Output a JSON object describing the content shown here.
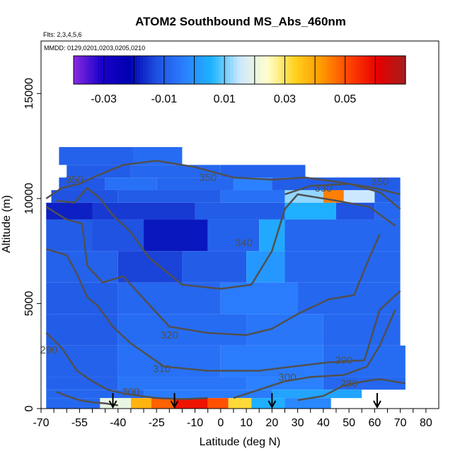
{
  "chart_data": {
    "type": "heatmap",
    "title": "ATOM2 Southbound MS_Abs_460nm",
    "flights_note": "Flts: 2,3,4,5,6",
    "dates_note": "MMDD: 0129,0201,0203,0205,0210",
    "xlabel": "Latitude (deg N)",
    "ylabel": "Altitude (m)",
    "xlim": [
      -70,
      85
    ],
    "ylim": [
      0,
      17500
    ],
    "x_ticks": [
      -70,
      -55,
      -40,
      -25,
      -10,
      0,
      10,
      20,
      30,
      40,
      50,
      60,
      70,
      80
    ],
    "x_tick_labels": [
      "-70",
      "-55",
      "-40",
      "-25",
      "-10",
      "0",
      "10",
      "20",
      "30",
      "40",
      "50",
      "60",
      "70",
      "80"
    ],
    "y_ticks": [
      0,
      5000,
      10000,
      15000
    ],
    "y_tick_labels": [
      "0",
      "5000",
      "10000",
      "15000"
    ],
    "colorbar": {
      "range": [
        -0.04,
        0.07
      ],
      "ticks": [
        -0.03,
        -0.01,
        0.01,
        0.03,
        0.05
      ],
      "tick_labels": [
        "-0.03",
        "-0.01",
        "0.01",
        "0.03",
        "0.05"
      ],
      "colors": [
        "#8a2be2",
        "#1a00c8",
        "#0000b0",
        "#1f50e0",
        "#2b7fff",
        "#1eb4ff",
        "#cce8ff",
        "#ffffcc",
        "#ffd21e",
        "#ff9600",
        "#ff4000",
        "#e60000",
        "#a51e1e"
      ]
    },
    "cells": [
      {
        "x0": -63,
        "x1": -34,
        "y0": 11600,
        "y1": 12450,
        "v": -0.009
      },
      {
        "x0": -34,
        "x1": -15,
        "y0": 11600,
        "y1": 12450,
        "v": -0.007
      },
      {
        "x0": -60,
        "x1": -35,
        "y0": 11000,
        "y1": 11600,
        "v": -0.01
      },
      {
        "x0": -35,
        "x1": 0,
        "y0": 11000,
        "y1": 11600,
        "v": -0.008
      },
      {
        "x0": 0,
        "x1": 33,
        "y0": 11000,
        "y1": 11600,
        "v": -0.009
      },
      {
        "x0": -63,
        "x1": -45,
        "y0": 10400,
        "y1": 11000,
        "v": -0.011
      },
      {
        "x0": -45,
        "x1": -25,
        "y0": 10400,
        "y1": 11000,
        "v": -0.006
      },
      {
        "x0": -25,
        "x1": 5,
        "y0": 10400,
        "y1": 11000,
        "v": -0.008
      },
      {
        "x0": 5,
        "x1": 20,
        "y0": 10400,
        "y1": 11000,
        "v": -0.003
      },
      {
        "x0": 20,
        "x1": 70,
        "y0": 10400,
        "y1": 11000,
        "v": -0.01
      },
      {
        "x0": -66,
        "x1": -40,
        "y0": 9800,
        "y1": 10400,
        "v": -0.012
      },
      {
        "x0": -40,
        "x1": 0,
        "y0": 9800,
        "y1": 10400,
        "v": -0.01
      },
      {
        "x0": 0,
        "x1": 25,
        "y0": 9800,
        "y1": 10400,
        "v": -0.006
      },
      {
        "x0": 25,
        "x1": 40,
        "y0": 9800,
        "y1": 10400,
        "v": 0.012
      },
      {
        "x0": 40,
        "x1": 48,
        "y0": 9800,
        "y1": 10400,
        "v": 0.045
      },
      {
        "x0": 48,
        "x1": 60,
        "y0": 9800,
        "y1": 10400,
        "v": 0.015
      },
      {
        "x0": 60,
        "x1": 70,
        "y0": 9800,
        "y1": 10400,
        "v": -0.009
      },
      {
        "x0": -68,
        "x1": -50,
        "y0": 9000,
        "y1": 9800,
        "v": -0.018
      },
      {
        "x0": -50,
        "x1": -10,
        "y0": 9000,
        "y1": 9800,
        "v": -0.015
      },
      {
        "x0": -10,
        "x1": 25,
        "y0": 9000,
        "y1": 9800,
        "v": -0.01
      },
      {
        "x0": 25,
        "x1": 45,
        "y0": 9000,
        "y1": 9800,
        "v": 0.005
      },
      {
        "x0": 45,
        "x1": 60,
        "y0": 9000,
        "y1": 9800,
        "v": -0.012
      },
      {
        "x0": 60,
        "x1": 70,
        "y0": 9000,
        "y1": 9800,
        "v": -0.008
      },
      {
        "x0": -68,
        "x1": -50,
        "y0": 7500,
        "y1": 9000,
        "v": -0.01
      },
      {
        "x0": -50,
        "x1": -30,
        "y0": 7500,
        "y1": 9000,
        "v": -0.012
      },
      {
        "x0": -30,
        "x1": -5,
        "y0": 7500,
        "y1": 9000,
        "v": -0.019
      },
      {
        "x0": -5,
        "x1": 15,
        "y0": 7500,
        "y1": 9000,
        "v": -0.009
      },
      {
        "x0": 15,
        "x1": 25,
        "y0": 7500,
        "y1": 9000,
        "v": 0.004
      },
      {
        "x0": 25,
        "x1": 70,
        "y0": 7500,
        "y1": 9000,
        "v": -0.008
      },
      {
        "x0": -68,
        "x1": -40,
        "y0": 6000,
        "y1": 7500,
        "v": -0.009
      },
      {
        "x0": -40,
        "x1": -15,
        "y0": 6000,
        "y1": 7500,
        "v": -0.014
      },
      {
        "x0": -15,
        "x1": 10,
        "y0": 6000,
        "y1": 7500,
        "v": -0.01
      },
      {
        "x0": 10,
        "x1": 25,
        "y0": 6000,
        "y1": 7500,
        "v": 0.001
      },
      {
        "x0": 25,
        "x1": 70,
        "y0": 6000,
        "y1": 7500,
        "v": -0.008
      },
      {
        "x0": -68,
        "x1": -40,
        "y0": 4500,
        "y1": 6000,
        "v": -0.01
      },
      {
        "x0": -40,
        "x1": 0,
        "y0": 4500,
        "y1": 6000,
        "v": -0.008
      },
      {
        "x0": 0,
        "x1": 30,
        "y0": 4500,
        "y1": 6000,
        "v": -0.004
      },
      {
        "x0": 30,
        "x1": 70,
        "y0": 4500,
        "y1": 6000,
        "v": -0.008
      },
      {
        "x0": -68,
        "x1": -40,
        "y0": 3000,
        "y1": 4500,
        "v": -0.01
      },
      {
        "x0": -40,
        "x1": 10,
        "y0": 3000,
        "y1": 4500,
        "v": -0.007
      },
      {
        "x0": 10,
        "x1": 40,
        "y0": 3000,
        "y1": 4500,
        "v": -0.005
      },
      {
        "x0": 40,
        "x1": 70,
        "y0": 3000,
        "y1": 4500,
        "v": -0.008
      },
      {
        "x0": -68,
        "x1": -40,
        "y0": 1500,
        "y1": 3000,
        "v": -0.009
      },
      {
        "x0": -40,
        "x1": 0,
        "y0": 1500,
        "y1": 3000,
        "v": -0.006
      },
      {
        "x0": 0,
        "x1": 40,
        "y0": 1500,
        "y1": 3000,
        "v": -0.004
      },
      {
        "x0": 40,
        "x1": 72,
        "y0": 1500,
        "y1": 3000,
        "v": -0.007
      },
      {
        "x0": -68,
        "x1": -40,
        "y0": 900,
        "y1": 1500,
        "v": -0.009
      },
      {
        "x0": -40,
        "x1": 10,
        "y0": 900,
        "y1": 1500,
        "v": -0.005
      },
      {
        "x0": 10,
        "x1": 40,
        "y0": 900,
        "y1": 1500,
        "v": -0.003
      },
      {
        "x0": 40,
        "x1": 72,
        "y0": 900,
        "y1": 1500,
        "v": -0.008
      },
      {
        "x0": -68,
        "x1": -30,
        "y0": 500,
        "y1": 900,
        "v": -0.008
      },
      {
        "x0": -30,
        "x1": 20,
        "y0": 500,
        "y1": 900,
        "v": -0.004
      },
      {
        "x0": 20,
        "x1": 55,
        "y0": 500,
        "y1": 900,
        "v": 0.003
      },
      {
        "x0": -68,
        "x1": -47,
        "y0": 0,
        "y1": 500,
        "v": -0.008
      },
      {
        "x0": -47,
        "x1": -35,
        "y0": 0,
        "y1": 500,
        "v": 0.02
      },
      {
        "x0": -35,
        "x1": -27,
        "y0": 0,
        "y1": 500,
        "v": 0.038
      },
      {
        "x0": -27,
        "x1": -18,
        "y0": 0,
        "y1": 500,
        "v": 0.048
      },
      {
        "x0": -18,
        "x1": -5,
        "y0": 0,
        "y1": 500,
        "v": 0.058
      },
      {
        "x0": -5,
        "x1": 3,
        "y0": 0,
        "y1": 500,
        "v": 0.05
      },
      {
        "x0": 3,
        "x1": 12,
        "y0": 0,
        "y1": 500,
        "v": 0.032
      },
      {
        "x0": 12,
        "x1": 25,
        "y0": 0,
        "y1": 500,
        "v": 0.005
      },
      {
        "x0": 25,
        "x1": 43,
        "y0": 0,
        "y1": 500,
        "v": -0.002
      }
    ],
    "contour_labels": [
      {
        "text": "350",
        "x": -5,
        "y": 11000
      },
      {
        "text": "350",
        "x": -57,
        "y": 10900
      },
      {
        "text": "330",
        "x": 40,
        "y": 10500
      },
      {
        "text": "350",
        "x": 62,
        "y": 10800
      },
      {
        "text": "340",
        "x": 9,
        "y": 7900
      },
      {
        "text": "320",
        "x": -20,
        "y": 3500
      },
      {
        "text": "310",
        "x": -23,
        "y": 1900
      },
      {
        "text": "300",
        "x": -35,
        "y": 800
      },
      {
        "text": "300",
        "x": 26,
        "y": 1500
      },
      {
        "text": "290",
        "x": 48,
        "y": 2300
      },
      {
        "text": "280",
        "x": 50,
        "y": 1200
      },
      {
        "text": "290",
        "x": -67,
        "y": 2800
      }
    ],
    "contours": [
      [
        [
          -68,
          10000
        ],
        [
          -62,
          10500
        ],
        [
          -55,
          10700
        ],
        [
          -48,
          11100
        ],
        [
          -38,
          11600
        ],
        [
          -25,
          11800
        ],
        [
          -10,
          11500
        ],
        [
          5,
          11000
        ],
        [
          20,
          10900
        ],
        [
          33,
          11000
        ],
        [
          45,
          10800
        ],
        [
          60,
          10500
        ],
        [
          70,
          10200
        ]
      ],
      [
        [
          25,
          10200
        ],
        [
          35,
          10600
        ],
        [
          50,
          10700
        ],
        [
          62,
          10300
        ],
        [
          70,
          9500
        ]
      ],
      [
        [
          -64,
          9900
        ],
        [
          -57,
          9800
        ],
        [
          -52,
          10500
        ],
        [
          -47,
          10000
        ],
        [
          -42,
          9200
        ],
        [
          -35,
          8400
        ],
        [
          -28,
          7200
        ],
        [
          -15,
          5900
        ],
        [
          0,
          5700
        ],
        [
          12,
          5900
        ],
        [
          20,
          7500
        ],
        [
          25,
          9500
        ],
        [
          30,
          10200
        ],
        [
          45,
          9900
        ],
        [
          58,
          9600
        ],
        [
          68,
          8700
        ]
      ],
      [
        [
          -68,
          9600
        ],
        [
          -60,
          9000
        ],
        [
          -54,
          8800
        ],
        [
          -52,
          6800
        ],
        [
          -46,
          6000
        ],
        [
          -38,
          6300
        ],
        [
          -32,
          5500
        ],
        [
          -20,
          3900
        ],
        [
          -5,
          3600
        ],
        [
          10,
          3500
        ],
        [
          20,
          3800
        ],
        [
          30,
          4500
        ],
        [
          42,
          5200
        ],
        [
          52,
          5400
        ],
        [
          58,
          7200
        ],
        [
          62,
          8300
        ]
      ],
      [
        [
          -68,
          7600
        ],
        [
          -60,
          7300
        ],
        [
          -56,
          6400
        ],
        [
          -52,
          5300
        ],
        [
          -48,
          4900
        ],
        [
          -42,
          3900
        ],
        [
          -35,
          3100
        ],
        [
          -22,
          2000
        ],
        [
          -5,
          1800
        ],
        [
          15,
          1800
        ],
        [
          28,
          2000
        ],
        [
          42,
          2200
        ],
        [
          56,
          2300
        ],
        [
          62,
          4700
        ],
        [
          70,
          5600
        ]
      ],
      [
        [
          -68,
          3600
        ],
        [
          -62,
          2900
        ],
        [
          -56,
          1800
        ],
        [
          -50,
          1300
        ],
        [
          -44,
          900
        ],
        [
          -37,
          700
        ],
        [
          -25,
          500
        ],
        [
          -15,
          450
        ],
        [
          -5,
          500
        ]
      ],
      [
        [
          5,
          500
        ],
        [
          15,
          900
        ],
        [
          25,
          1300
        ],
        [
          35,
          1500
        ],
        [
          48,
          1600
        ],
        [
          57,
          2000
        ],
        [
          62,
          3000
        ],
        [
          68,
          4700
        ]
      ],
      [
        [
          30,
          400
        ],
        [
          40,
          600
        ],
        [
          48,
          1100
        ],
        [
          56,
          1300
        ],
        [
          62,
          1400
        ],
        [
          72,
          1200
        ]
      ],
      [
        [
          -64,
          800
        ],
        [
          -60,
          600
        ],
        [
          -55,
          400
        ],
        [
          -50,
          300
        ],
        [
          -45,
          250
        ],
        [
          -40,
          150
        ]
      ]
    ],
    "arrow_markers_lat": [
      -42,
      -18,
      20,
      61
    ]
  }
}
